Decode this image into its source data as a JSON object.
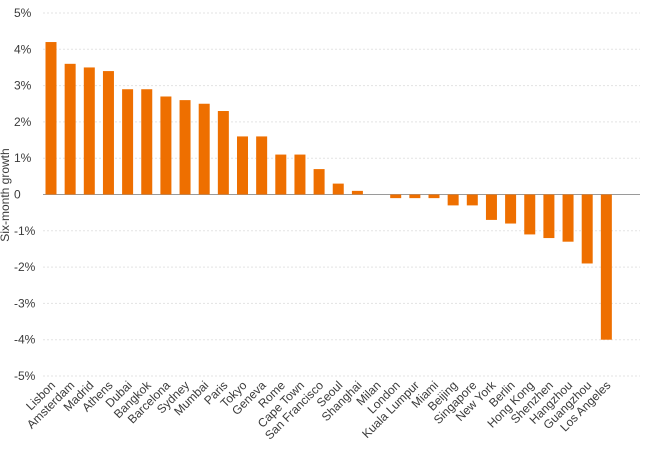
{
  "chart_data": {
    "type": "bar",
    "ylabel": "Six-month growth",
    "ylim": [
      -5,
      5
    ],
    "yticks": [
      5,
      4,
      3,
      2,
      1,
      0,
      -1,
      -2,
      -3,
      -4,
      -5
    ],
    "ytick_labels": [
      "5%",
      "4%",
      "3%",
      "2%",
      "1%",
      "0",
      "-1%",
      "-2%",
      "-3%",
      "-4%",
      "-5%"
    ],
    "grid": true,
    "bar_color": "#ee6f00",
    "categories": [
      "Lisbon",
      "Amsterdam",
      "Madrid",
      "Athens",
      "Dubai",
      "Bangkok",
      "Barcelona",
      "Sydney",
      "Mumbai",
      "Paris",
      "Tokyo",
      "Geneva",
      "Rome",
      "Cape Town",
      "San Francisco",
      "Seoul",
      "Shanghai",
      "Milan",
      "London",
      "Kuala Lumpur",
      "Miami",
      "Beijing",
      "Singapore",
      "New York",
      "Berlin",
      "Hong Kong",
      "Shenzhen",
      "Hangzhou",
      "Guangzhou",
      "Los Angeles"
    ],
    "values": [
      4.2,
      3.6,
      3.5,
      3.4,
      2.9,
      2.9,
      2.7,
      2.6,
      2.5,
      2.3,
      1.6,
      1.6,
      1.1,
      1.1,
      0.7,
      0.3,
      0.1,
      0.0,
      -0.1,
      -0.1,
      -0.1,
      -0.3,
      -0.3,
      -0.7,
      -0.8,
      -1.1,
      -1.2,
      -1.3,
      -1.9,
      -4.0
    ]
  }
}
